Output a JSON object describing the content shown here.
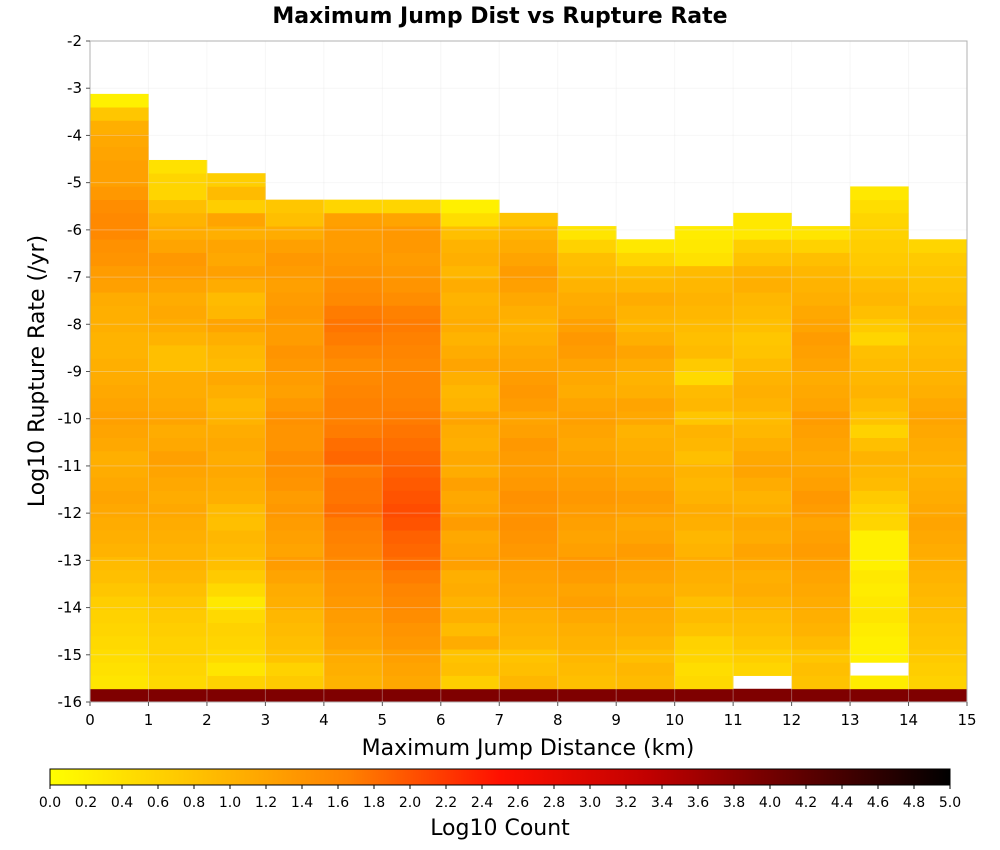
{
  "chart_data": {
    "type": "heatmap",
    "title": "Maximum Jump Dist vs Rupture Rate",
    "xlabel": "Maximum Jump Distance (km)",
    "ylabel": "Log10 Rupture Rate (/yr)",
    "xlim": [
      0,
      15
    ],
    "ylim": [
      -16,
      -2
    ],
    "x_ticks": [
      "0",
      "1",
      "2",
      "3",
      "4",
      "5",
      "6",
      "7",
      "8",
      "9",
      "10",
      "11",
      "12",
      "13",
      "14",
      "15"
    ],
    "y_ticks": [
      "-16",
      "-15",
      "-14",
      "-13",
      "-12",
      "-11",
      "-10",
      "-9",
      "-8",
      "-7",
      "-6",
      "-5",
      "-4",
      "-3",
      "-2"
    ],
    "grid": true,
    "x_bin_width": 1,
    "y_bin_width": 0.28,
    "y_bins_start": -16,
    "colorbar": {
      "label": "Log10 Count",
      "min": 0,
      "max": 5,
      "ticks": [
        "0.0",
        "0.2",
        "0.4",
        "0.6",
        "0.8",
        "1.0",
        "1.2",
        "1.4",
        "1.6",
        "1.8",
        "2.0",
        "2.2",
        "2.4",
        "2.6",
        "2.8",
        "3.0",
        "3.2",
        "3.4",
        "3.6",
        "3.8",
        "4.0",
        "4.2",
        "4.4",
        "4.6",
        "4.8",
        "5.0"
      ],
      "colors": [
        "#ffff00",
        "#ffc000",
        "#ff8000",
        "#ff1000",
        "#c00000",
        "#600000",
        "#000000"
      ],
      "placement": "bottom"
    },
    "columns": [
      {
        "x": 0,
        "values": [
          3.9,
          0.35,
          0.4,
          0.45,
          0.5,
          0.55,
          0.6,
          0.65,
          0.75,
          0.85,
          0.9,
          1.0,
          1.05,
          1.1,
          1.15,
          1.2,
          1.15,
          1.1,
          1.05,
          1.15,
          1.2,
          1.25,
          1.2,
          1.15,
          1.1,
          1.05,
          1.0,
          1.0,
          1.05,
          1.05,
          1.1,
          1.25,
          1.3,
          1.4,
          1.45,
          1.55,
          1.55,
          1.5,
          1.35,
          1.25,
          1.25,
          1.2,
          1.15,
          1.05,
          0.75,
          0.2
        ]
      },
      {
        "x": 1,
        "values": [
          3.9,
          0.5,
          0.55,
          0.6,
          0.6,
          0.65,
          0.7,
          0.75,
          0.85,
          0.95,
          1.0,
          1.0,
          1.05,
          1.1,
          1.15,
          1.1,
          1.15,
          1.2,
          1.25,
          1.15,
          1.1,
          1.2,
          1.15,
          1.1,
          1.1,
          0.85,
          0.85,
          1.0,
          1.1,
          1.15,
          1.1,
          1.2,
          1.3,
          1.35,
          1.2,
          1.1,
          1.0,
          0.85,
          0.55,
          0.55,
          0.4
        ]
      },
      {
        "x": 2,
        "values": [
          3.9,
          0.6,
          0.35,
          0.5,
          0.55,
          0.6,
          0.5,
          0.3,
          0.5,
          0.7,
          0.85,
          0.9,
          0.95,
          0.85,
          0.9,
          1.05,
          1.1,
          1.15,
          1.1,
          1.15,
          1.1,
          1.0,
          0.95,
          1.05,
          1.15,
          0.9,
          0.95,
          1.05,
          1.2,
          0.95,
          0.9,
          1.1,
          1.25,
          1.15,
          1.2,
          1.05,
          1.2,
          0.65,
          0.9,
          0.65
        ]
      },
      {
        "x": 3,
        "values": [
          3.9,
          0.7,
          0.6,
          0.8,
          0.85,
          0.9,
          0.95,
          1.05,
          1.1,
          1.2,
          1.3,
          1.2,
          1.25,
          1.3,
          1.35,
          1.3,
          1.4,
          1.45,
          1.5,
          1.4,
          1.4,
          1.45,
          1.35,
          1.25,
          1.3,
          1.35,
          1.4,
          1.3,
          1.3,
          1.35,
          1.3,
          1.25,
          1.3,
          1.35,
          1.25,
          1.1,
          0.85,
          0.75
        ]
      },
      {
        "x": 4,
        "values": [
          3.9,
          1.0,
          1.05,
          1.1,
          1.2,
          1.25,
          1.3,
          1.35,
          1.4,
          1.45,
          1.55,
          1.6,
          1.65,
          1.7,
          1.8,
          1.75,
          1.75,
          1.7,
          1.85,
          1.8,
          1.7,
          1.65,
          1.65,
          1.6,
          1.55,
          1.5,
          1.6,
          1.7,
          1.75,
          1.7,
          1.55,
          1.5,
          1.4,
          1.35,
          1.3,
          1.3,
          1.25,
          0.55
        ]
      },
      {
        "x": 5,
        "values": [
          3.9,
          1.15,
          1.2,
          1.25,
          1.35,
          1.4,
          1.5,
          1.55,
          1.6,
          1.7,
          1.8,
          1.85,
          1.9,
          2.0,
          2.05,
          2.0,
          1.95,
          1.9,
          1.85,
          1.8,
          1.75,
          1.7,
          1.65,
          1.6,
          1.6,
          1.55,
          1.6,
          1.65,
          1.7,
          1.65,
          1.5,
          1.4,
          1.35,
          1.3,
          1.35,
          1.35,
          1.2,
          0.55
        ]
      },
      {
        "x": 6,
        "values": [
          3.9,
          0.65,
          0.85,
          0.8,
          1.1,
          0.9,
          1.05,
          1.0,
          1.1,
          1.05,
          1.25,
          1.2,
          1.15,
          1.3,
          1.2,
          1.15,
          1.25,
          1.1,
          1.15,
          1.05,
          1.1,
          1.2,
          1.0,
          0.95,
          1.05,
          1.2,
          1.1,
          1.0,
          1.1,
          1.05,
          1.0,
          1.1,
          0.95,
          1.05,
          1.0,
          0.85,
          0.45,
          0.2
        ]
      },
      {
        "x": 7,
        "values": [
          3.9,
          0.95,
          0.85,
          0.8,
          0.95,
          1.0,
          1.05,
          1.15,
          1.2,
          1.25,
          1.3,
          1.35,
          1.4,
          1.45,
          1.4,
          1.45,
          1.35,
          1.3,
          1.3,
          1.35,
          1.25,
          1.2,
          1.3,
          1.35,
          1.3,
          1.2,
          1.15,
          1.05,
          1.0,
          1.05,
          1.15,
          1.25,
          1.3,
          1.2,
          1.1,
          1.0,
          0.8
        ]
      },
      {
        "x": 8,
        "values": [
          3.9,
          0.85,
          0.9,
          0.95,
          1.0,
          1.05,
          1.15,
          1.25,
          1.2,
          1.3,
          1.35,
          1.25,
          1.2,
          1.25,
          1.3,
          1.35,
          1.3,
          1.25,
          1.2,
          1.15,
          1.2,
          1.25,
          1.2,
          1.1,
          1.15,
          1.2,
          1.3,
          1.35,
          1.25,
          1.15,
          1.1,
          1.0,
          0.9,
          0.85,
          0.6,
          0.35
        ]
      },
      {
        "x": 9,
        "values": [
          3.9,
          0.9,
          0.95,
          0.85,
          0.95,
          1.05,
          1.1,
          1.15,
          1.1,
          1.2,
          1.25,
          1.3,
          1.2,
          1.15,
          1.25,
          1.3,
          1.2,
          1.15,
          1.1,
          1.05,
          1.0,
          1.15,
          1.2,
          1.05,
          1.0,
          1.1,
          1.2,
          1.05,
          0.95,
          1.0,
          1.1,
          0.95,
          0.85,
          0.55,
          0.3
        ]
      },
      {
        "x": 10,
        "values": [
          3.9,
          0.5,
          0.45,
          0.55,
          0.6,
          0.8,
          0.9,
          0.85,
          1.0,
          1.05,
          1.1,
          1.0,
          0.95,
          1.05,
          1.1,
          1.0,
          0.95,
          1.0,
          0.85,
          0.95,
          1.0,
          0.75,
          0.95,
          0.9,
          0.5,
          0.7,
          0.9,
          0.85,
          0.9,
          0.95,
          1.0,
          0.95,
          0.9,
          0.4,
          0.3,
          0.25
        ]
      },
      {
        "x": 11,
        "values": [
          3.9,
          -1,
          0.55,
          0.65,
          0.75,
          0.85,
          0.9,
          1.0,
          1.1,
          1.05,
          1.15,
          1.2,
          1.1,
          1.15,
          1.05,
          1.0,
          1.1,
          1.2,
          1.15,
          1.05,
          0.95,
          0.9,
          1.0,
          1.05,
          1.0,
          0.9,
          0.8,
          0.75,
          0.85,
          0.9,
          0.95,
          1.05,
          1.0,
          0.8,
          0.65,
          0.3,
          0.3
        ]
      },
      {
        "x": 12,
        "values": [
          3.9,
          0.8,
          0.85,
          0.75,
          0.9,
          1.0,
          1.05,
          1.1,
          1.15,
          1.2,
          1.25,
          1.3,
          1.25,
          1.2,
          1.3,
          1.35,
          1.25,
          1.2,
          1.15,
          1.2,
          1.25,
          1.3,
          1.2,
          1.15,
          1.1,
          1.2,
          1.25,
          1.3,
          1.2,
          1.15,
          1.05,
          1.0,
          0.95,
          0.85,
          0.6,
          0.35
        ]
      },
      {
        "x": 13,
        "values": [
          3.9,
          0.25,
          -1,
          0.2,
          0.2,
          0.25,
          0.35,
          0.3,
          0.25,
          0.3,
          0.2,
          0.2,
          0.2,
          0.55,
          0.6,
          0.7,
          0.9,
          0.95,
          1.0,
          0.85,
          0.6,
          0.8,
          0.9,
          1.0,
          0.95,
          0.9,
          0.85,
          0.55,
          0.7,
          0.85,
          0.95,
          0.9,
          0.75,
          0.7,
          0.65,
          0.6,
          0.55,
          0.45,
          0.3
        ]
      },
      {
        "x": 14,
        "values": [
          3.9,
          0.6,
          0.65,
          0.7,
          0.75,
          0.8,
          0.85,
          0.9,
          0.95,
          1.0,
          1.05,
          1.1,
          1.15,
          1.2,
          1.15,
          1.1,
          1.05,
          1.0,
          1.05,
          1.1,
          1.15,
          1.2,
          1.15,
          1.05,
          1.0,
          0.95,
          0.9,
          0.85,
          0.9,
          0.95,
          0.85,
          0.8,
          0.75,
          0.7,
          0.55
        ]
      }
    ]
  }
}
